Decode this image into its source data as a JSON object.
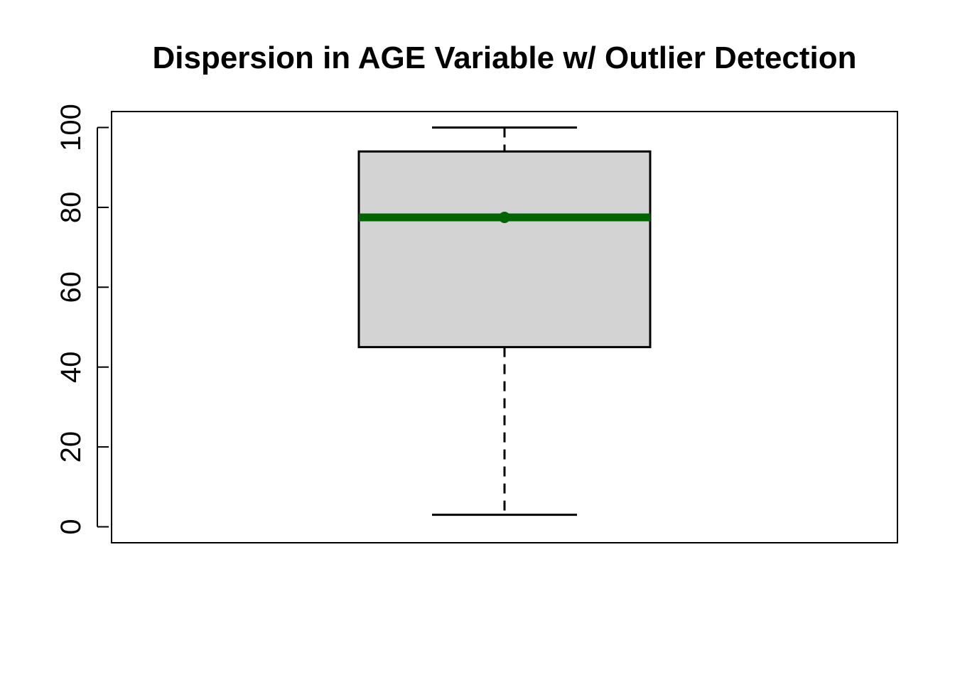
{
  "chart_data": {
    "type": "boxplot",
    "title": "Dispersion in AGE Variable w/ Outlier Detection",
    "xlabel": "",
    "ylabel": "",
    "ylim": [
      -4,
      104
    ],
    "yticks": [
      0,
      20,
      40,
      60,
      80,
      100
    ],
    "yticks_labels": [
      "0",
      "20",
      "40",
      "60",
      "80",
      "100"
    ],
    "grid": false,
    "legend": "none",
    "box": {
      "min": 3,
      "q1": 45,
      "median": 77.5,
      "q3": 94,
      "max": 100,
      "mean": 77.5,
      "outliers": []
    },
    "colors": {
      "box_fill": "#d3d3d3",
      "box_stroke": "#000000",
      "median_line": "#006400",
      "mean_point": "#006400",
      "frame": "#000000"
    }
  }
}
